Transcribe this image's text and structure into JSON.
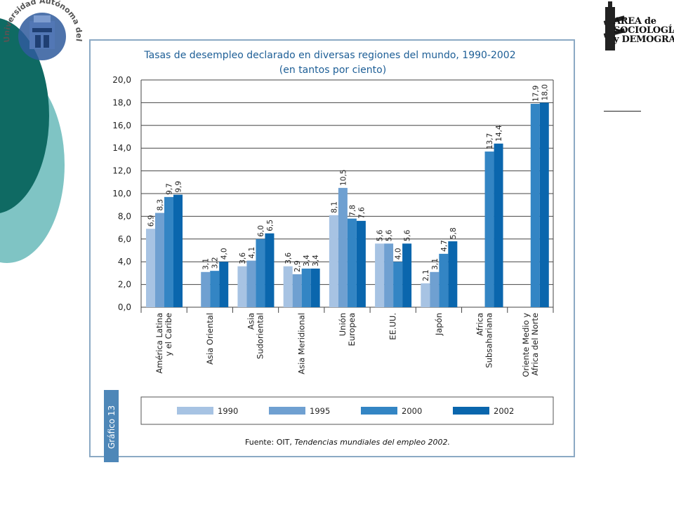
{
  "logos": {
    "university_seal_text": "Universidad Autónoma del Estado de Hidalgo",
    "area_lines": [
      "AREA de",
      "SOCIOLOGÍA",
      "y DEMOGRAFÍA"
    ]
  },
  "colors": {
    "deco_dark": "#0f6a63",
    "deco_light": "#7fc4c4",
    "frame": "#8ba9c4",
    "tab": "#4e87b8",
    "series": [
      "#a7c3e3",
      "#6fa0d1",
      "#3385c4",
      "#0a66ad"
    ]
  },
  "chart_data": {
    "type": "bar",
    "title": "Tasas de desempleo declarado en diversas regiones del mundo, 1990-2002",
    "subtitle": "(en tantos por ciento)",
    "ylim": [
      0,
      20
    ],
    "yticks": [
      "0,0",
      "2,0",
      "4,0",
      "6,0",
      "8,0",
      "10,0",
      "12,0",
      "14,0",
      "16,0",
      "18,0",
      "20,0"
    ],
    "grid": true,
    "legend_position": "bottom",
    "categories": [
      [
        "América Latina",
        "y el Caribe"
      ],
      [
        "Asia Oriental"
      ],
      [
        "Asia",
        "Sudoriental"
      ],
      [
        "Asia Meridional"
      ],
      [
        "Unión",
        "Europea"
      ],
      [
        "EE.UU."
      ],
      [
        "Japón"
      ],
      [
        "Africa",
        "Subsahariana"
      ],
      [
        "Oriente Medio y",
        "Africa del Norte"
      ]
    ],
    "series": [
      {
        "name": "1990",
        "values": [
          6.9,
          null,
          3.6,
          3.6,
          8.1,
          5.6,
          2.1,
          null,
          null
        ],
        "labels": [
          "6,9",
          "",
          "3,6",
          "3,6",
          "8,1",
          "5,6",
          "2,1",
          "",
          ""
        ]
      },
      {
        "name": "1995",
        "values": [
          8.3,
          3.1,
          4.1,
          2.9,
          10.5,
          5.6,
          3.1,
          null,
          null
        ],
        "labels": [
          "8,3",
          "3,1",
          "4,1",
          "2,9",
          "10,5",
          "5,6",
          "3,1",
          "",
          ""
        ]
      },
      {
        "name": "2000",
        "values": [
          9.7,
          3.2,
          6.0,
          3.4,
          7.8,
          4.0,
          4.7,
          13.7,
          17.9
        ],
        "labels": [
          "9,7",
          "3,2",
          "6,0",
          "3,4",
          "7,8",
          "4,0",
          "4,7",
          "13,7",
          "17,9"
        ]
      },
      {
        "name": "2002",
        "values": [
          9.9,
          4.0,
          6.5,
          3.4,
          7.6,
          5.6,
          5.8,
          14.4,
          18.0
        ],
        "labels": [
          "9,9",
          "4,0",
          "6,5",
          "3,4",
          "7,6",
          "5,6",
          "5,8",
          "14,4",
          "18,0"
        ]
      }
    ],
    "source_prefix": "Fuente: OIT, ",
    "source_italic": "Tendencias mundiales del empleo 2002.",
    "tab_label": "Gráfico 13"
  }
}
